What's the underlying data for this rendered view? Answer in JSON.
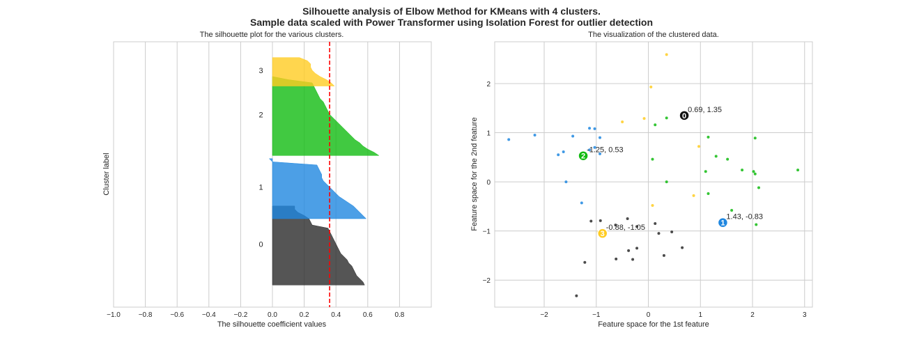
{
  "figure": {
    "suptitle_line1": "Silhouette analysis of Elbow Method for KMeans with 4 clusters.",
    "suptitle_line2": "Sample data scaled with Power Transformer using Isolation Forest for outlier detection"
  },
  "chart_data": [
    {
      "type": "area",
      "title": "The silhouette plot for the various clusters.",
      "xlabel": "The silhouette coefficient values",
      "ylabel": "Cluster label",
      "xlim": [
        -1.0,
        1.0
      ],
      "ylim": [
        0,
        84
      ],
      "xticks": [
        -1.0,
        -0.8,
        -0.6,
        -0.4,
        -0.2,
        0.0,
        0.2,
        0.4,
        0.6,
        0.8
      ],
      "xtick_labels": [
        "−1.0",
        "−0.8",
        "−0.6",
        "−0.4",
        "−0.2",
        "0.0",
        "0.2",
        "0.4",
        "0.6",
        "0.8"
      ],
      "grid": true,
      "average_silhouette": 0.36,
      "average_line_color": "#ff0000",
      "clusters": [
        {
          "label": "0",
          "color": "#2b2b2b",
          "y_lower": 7,
          "values": [
            0.58,
            0.57,
            0.55,
            0.53,
            0.52,
            0.51,
            0.5,
            0.48,
            0.47,
            0.45,
            0.43,
            0.42,
            0.41,
            0.4,
            0.39,
            0.38,
            0.37,
            0.36,
            0.35,
            0.25,
            0.24,
            0.23,
            0.2,
            0.16,
            0.14,
            0.14
          ]
        },
        {
          "label": "1",
          "color": "#1f87e0",
          "y_lower": 28,
          "values": [
            0.59,
            0.57,
            0.55,
            0.53,
            0.51,
            0.48,
            0.45,
            0.42,
            0.4,
            0.38,
            0.36,
            0.34,
            0.32,
            0.31,
            0.31,
            0.3,
            0.29,
            0.28,
            0.0,
            -0.02
          ]
        },
        {
          "label": "2",
          "color": "#11bb11",
          "y_lower": 48,
          "values": [
            0.67,
            0.64,
            0.6,
            0.57,
            0.55,
            0.52,
            0.5,
            0.48,
            0.46,
            0.44,
            0.42,
            0.4,
            0.38,
            0.36,
            0.35,
            0.34,
            0.33,
            0.32,
            0.3,
            0.29,
            0.28,
            0.27,
            0.26,
            0.25,
            0.1,
            0.0
          ]
        },
        {
          "label": "3",
          "color": "#ffcc22",
          "y_lower": 70,
          "values": [
            0.39,
            0.37,
            0.34,
            0.3,
            0.27,
            0.25,
            0.24,
            0.24,
            0.22,
            0.17
          ]
        }
      ]
    },
    {
      "type": "scatter",
      "title": "The visualization of the clustered data.",
      "xlabel": "Feature space for the 1st feature",
      "ylabel": "Feature space for the 2nd feature",
      "xlim": [
        -2.95,
        3.15
      ],
      "ylim": [
        -2.55,
        2.85
      ],
      "xticks": [
        -2,
        -1,
        0,
        1,
        2,
        3
      ],
      "xtick_labels": [
        "−2",
        "−1",
        "0",
        "1",
        "2",
        "3"
      ],
      "yticks": [
        -2,
        -1,
        0,
        1,
        2
      ],
      "ytick_labels": [
        "−2",
        "−1",
        "0",
        "1",
        "2"
      ],
      "grid": true,
      "series": [
        {
          "label": "0",
          "color": "#2b2b2b",
          "points": [
            [
              -1.1,
              -0.8
            ],
            [
              -0.92,
              -0.79
            ],
            [
              -0.63,
              -0.88
            ],
            [
              -0.4,
              -0.75
            ],
            [
              -0.22,
              -0.91
            ],
            [
              0.13,
              -0.85
            ],
            [
              0.2,
              -1.05
            ],
            [
              0.45,
              -1.02
            ],
            [
              -0.38,
              -1.4
            ],
            [
              -0.22,
              -1.35
            ],
            [
              -0.62,
              -1.57
            ],
            [
              -0.3,
              -1.58
            ],
            [
              0.3,
              -1.5
            ],
            [
              0.65,
              -1.34
            ],
            [
              -1.22,
              -1.64
            ],
            [
              -1.38,
              -2.32
            ]
          ]
        },
        {
          "label": "1",
          "color": "#1f87e0",
          "points": [
            [
              -2.68,
              0.86
            ],
            [
              -2.18,
              0.95
            ],
            [
              -1.63,
              0.61
            ],
            [
              -1.73,
              0.55
            ],
            [
              -1.45,
              0.93
            ],
            [
              -1.13,
              1.09
            ],
            [
              -1.03,
              1.08
            ],
            [
              -0.93,
              0.9
            ],
            [
              -1.03,
              0.7
            ],
            [
              -0.93,
              0.57
            ],
            [
              -1.13,
              0.65
            ],
            [
              -1.58,
              0.0
            ],
            [
              -1.28,
              -0.43
            ]
          ]
        },
        {
          "label": "2",
          "color": "#11bb11",
          "points": [
            [
              0.13,
              1.16
            ],
            [
              0.35,
              1.3
            ],
            [
              1.15,
              0.91
            ],
            [
              2.05,
              0.89
            ],
            [
              0.08,
              0.46
            ],
            [
              1.3,
              0.52
            ],
            [
              1.52,
              0.46
            ],
            [
              1.8,
              0.24
            ],
            [
              2.02,
              0.21
            ],
            [
              2.05,
              0.16
            ],
            [
              2.87,
              0.24
            ],
            [
              1.1,
              0.21
            ],
            [
              0.35,
              0.0
            ],
            [
              1.15,
              -0.24
            ],
            [
              2.12,
              -0.12
            ],
            [
              1.6,
              -0.58
            ],
            [
              2.07,
              -0.87
            ]
          ]
        },
        {
          "label": "3",
          "color": "#ffcc22",
          "points": [
            [
              0.35,
              2.59
            ],
            [
              0.05,
              1.93
            ],
            [
              -0.5,
              1.22
            ],
            [
              -0.08,
              1.29
            ],
            [
              0.97,
              0.72
            ],
            [
              0.08,
              -0.48
            ],
            [
              0.87,
              -0.28
            ],
            [
              -0.96,
              -1.02
            ]
          ]
        }
      ],
      "centers": [
        {
          "label": "0",
          "x": 0.69,
          "y": 1.35,
          "text": "0.69, 1.35",
          "color": "#111111"
        },
        {
          "label": "1",
          "x": 1.43,
          "y": -0.83,
          "text": "1.43, -0.83",
          "color": "#1f87e0"
        },
        {
          "label": "2",
          "x": -1.25,
          "y": 0.53,
          "text": "-1.25, 0.53",
          "color": "#11bb11"
        },
        {
          "label": "3",
          "x": -0.88,
          "y": -1.05,
          "text": "-0.88, -1.05",
          "color": "#ffcc22"
        }
      ]
    }
  ]
}
